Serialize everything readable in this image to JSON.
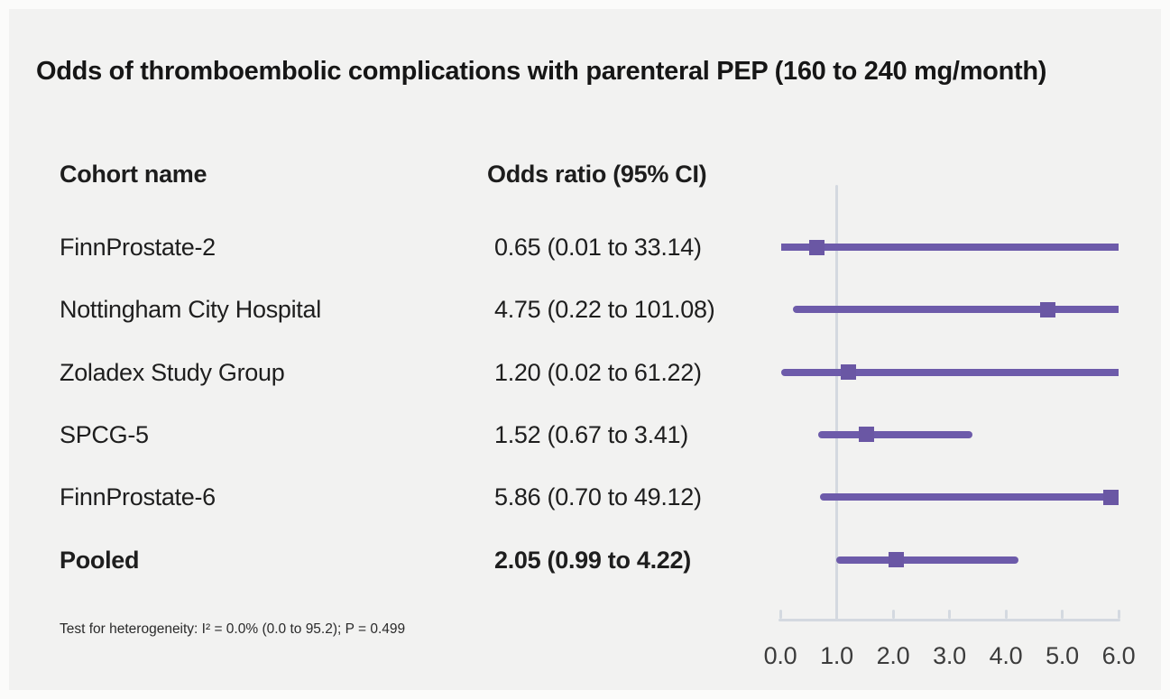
{
  "title": "Odds of thromboembolic complications with parenteral PEP (160 to 240 mg/month)",
  "table": {
    "col_cohort": "Cohort name",
    "col_odds": "Odds ratio (95% CI)"
  },
  "footnote": "Test for heterogeneity: I² = 0.0% (0.0 to 95.2); P = 0.499",
  "colors": {
    "background": "#f2f2f1",
    "frame": "#fbfbfa",
    "text": "#1e1e1e",
    "marker": "#6a57a4",
    "ci_line": "#6d5baa",
    "axis": "#d4d9e0"
  },
  "chart_data": {
    "type": "forest",
    "title": "Odds of thromboembolic complications with parenteral PEP (160 to 240 mg/month)",
    "xlabel": "Odds ratio",
    "xlim": [
      0,
      6
    ],
    "x_tick_values": [
      0,
      1,
      2,
      3,
      4,
      5,
      6
    ],
    "x_tick_labels": [
      "0.0",
      "1.0",
      "2.0",
      "3.0",
      "4.0",
      "5.0",
      "6.0"
    ],
    "reference_line_x": 1.0,
    "legend": "none",
    "grid": "off",
    "studies": [
      {
        "name": "FinnProstate-2",
        "odds_ratio": 0.65,
        "ci_low": 0.01,
        "ci_high": 33.14,
        "label": "0.65 (0.01 to 33.14)",
        "summary": false
      },
      {
        "name": "Nottingham City Hospital",
        "odds_ratio": 4.75,
        "ci_low": 0.22,
        "ci_high": 101.08,
        "label": "4.75 (0.22 to 101.08)",
        "summary": false
      },
      {
        "name": "Zoladex Study Group",
        "odds_ratio": 1.2,
        "ci_low": 0.02,
        "ci_high": 61.22,
        "label": "1.20 (0.02 to 61.22)",
        "summary": false
      },
      {
        "name": "SPCG-5",
        "odds_ratio": 1.52,
        "ci_low": 0.67,
        "ci_high": 3.41,
        "label": "1.52 (0.67 to 3.41)",
        "summary": false
      },
      {
        "name": "FinnProstate-6",
        "odds_ratio": 5.86,
        "ci_low": 0.7,
        "ci_high": 49.12,
        "label": "5.86 (0.70 to 49.12)",
        "summary": false
      },
      {
        "name": "Pooled",
        "odds_ratio": 2.05,
        "ci_low": 0.99,
        "ci_high": 4.22,
        "label": "2.05 (0.99 to 4.22)",
        "summary": true
      }
    ],
    "heterogeneity": "Test for heterogeneity: I² = 0.0% (0.0 to 95.2); P = 0.499"
  }
}
